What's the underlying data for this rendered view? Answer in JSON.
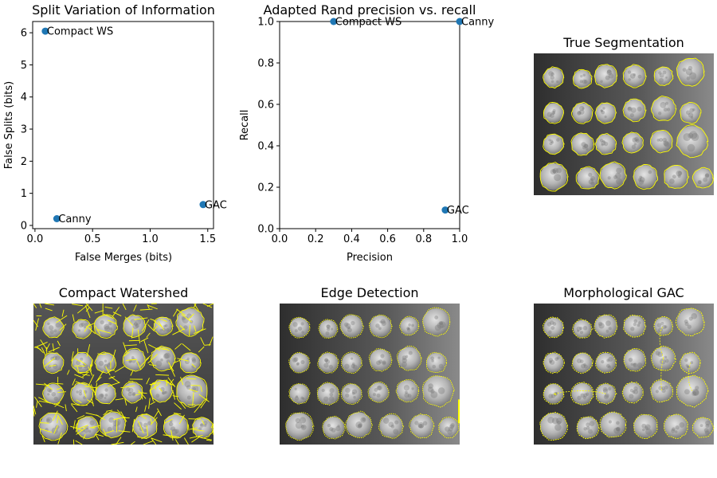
{
  "figure": {
    "colors": {
      "point": "#1f77b4",
      "contour": "#ffff00",
      "axis": "#000000"
    }
  },
  "chart_data": [
    {
      "type": "scatter",
      "title": "Split Variation of Information",
      "xlabel": "False Merges (bits)",
      "ylabel": "False Splits (bits)",
      "xlim": [
        -0.02,
        1.55
      ],
      "ylim": [
        -0.1,
        6.35
      ],
      "xticks": [
        "0.0",
        "0.5",
        "1.0",
        "1.5"
      ],
      "xtick_values": [
        0,
        0.5,
        1.0,
        1.5
      ],
      "yticks": [
        "0",
        "1",
        "2",
        "3",
        "4",
        "5",
        "6"
      ],
      "ytick_values": [
        0,
        1,
        2,
        3,
        4,
        5,
        6
      ],
      "points": [
        {
          "label": "Compact WS",
          "x": 0.09,
          "y": 6.05
        },
        {
          "label": "Canny",
          "x": 0.19,
          "y": 0.21
        },
        {
          "label": "GAC",
          "x": 1.46,
          "y": 0.65
        }
      ]
    },
    {
      "type": "scatter",
      "title": "Adapted Rand precision vs. recall",
      "xlabel": "Precision",
      "ylabel": "Recall",
      "xlim": [
        0,
        1
      ],
      "ylim": [
        0,
        1
      ],
      "xticks": [
        "0.0",
        "0.2",
        "0.4",
        "0.6",
        "0.8",
        "1.0"
      ],
      "xtick_values": [
        0,
        0.2,
        0.4,
        0.6,
        0.8,
        1.0
      ],
      "yticks": [
        "0.0",
        "0.2",
        "0.4",
        "0.6",
        "0.8",
        "1.0"
      ],
      "ytick_values": [
        0,
        0.2,
        0.4,
        0.6,
        0.8,
        1.0
      ],
      "points": [
        {
          "label": "Compact WS",
          "x": 0.3,
          "y": 1.0
        },
        {
          "label": "Canny",
          "x": 1.0,
          "y": 1.0
        },
        {
          "label": "GAC",
          "x": 0.92,
          "y": 0.09
        }
      ]
    }
  ],
  "image_panels": [
    {
      "id": "true",
      "title": "True Segmentation",
      "style": "true"
    },
    {
      "id": "compact",
      "title": "Compact Watershed",
      "style": "compact"
    },
    {
      "id": "edge",
      "title": "Edge Detection",
      "style": "edge"
    },
    {
      "id": "gac",
      "title": "Morphological GAC",
      "style": "gac"
    }
  ]
}
